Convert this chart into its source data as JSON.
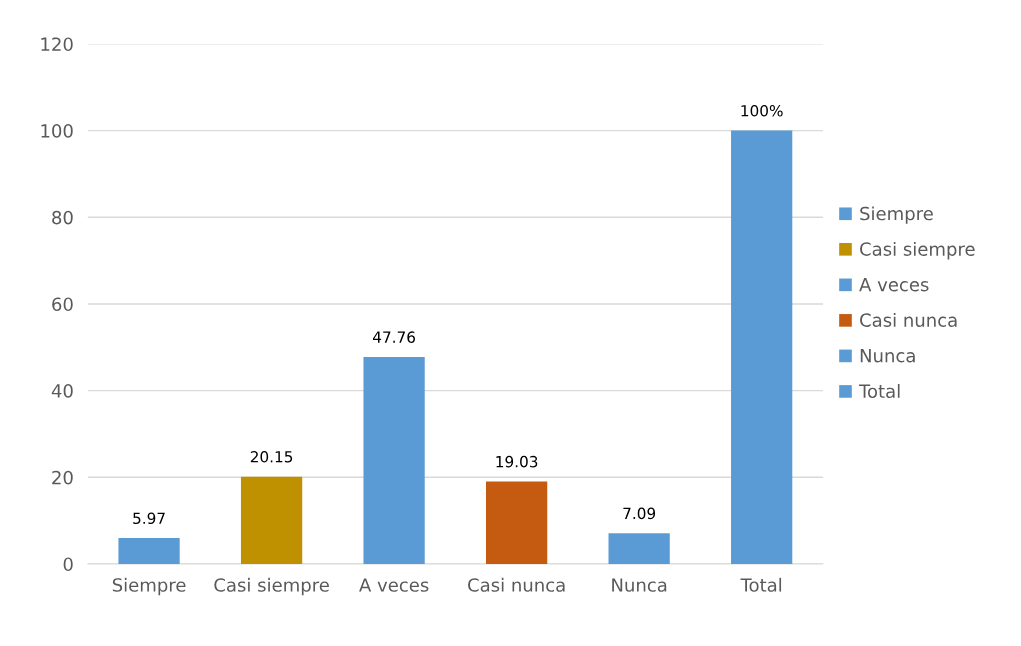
{
  "chart_data": {
    "type": "bar",
    "categories": [
      "Siempre",
      "Casi siempre",
      "A veces",
      "Casi nunca",
      "Nunca",
      "Total"
    ],
    "series": [
      {
        "name": "Siempre",
        "color": "#5b9bd5",
        "values": [
          5.97,
          null,
          null,
          null,
          null,
          null
        ],
        "value_labels": [
          "5.97",
          null,
          null,
          null,
          null,
          null
        ]
      },
      {
        "name": "Casi siempre",
        "color": "#bf9000",
        "values": [
          null,
          20.15,
          null,
          null,
          null,
          null
        ],
        "value_labels": [
          null,
          "20.15",
          null,
          null,
          null,
          null
        ]
      },
      {
        "name": "A veces",
        "color": "#5b9bd5",
        "values": [
          null,
          null,
          47.76,
          null,
          null,
          null
        ],
        "value_labels": [
          null,
          null,
          "47.76",
          null,
          null,
          null
        ]
      },
      {
        "name": "Casi nunca",
        "color": "#c55a11",
        "values": [
          null,
          null,
          null,
          19.03,
          null,
          null
        ],
        "value_labels": [
          null,
          null,
          null,
          "19.03",
          null,
          null
        ]
      },
      {
        "name": "Nunca",
        "color": "#5b9bd5",
        "values": [
          null,
          null,
          null,
          null,
          7.09,
          null
        ],
        "value_labels": [
          null,
          null,
          null,
          null,
          "7.09",
          null
        ]
      },
      {
        "name": "Total",
        "color": "#5b9bd5",
        "values": [
          null,
          null,
          null,
          null,
          null,
          100
        ],
        "value_labels": [
          null,
          null,
          null,
          null,
          null,
          "100%"
        ]
      }
    ],
    "ylim": [
      0,
      120
    ],
    "yticks": [
      0,
      20,
      40,
      60,
      80,
      100,
      120
    ],
    "grid": "y",
    "legend": "right"
  }
}
